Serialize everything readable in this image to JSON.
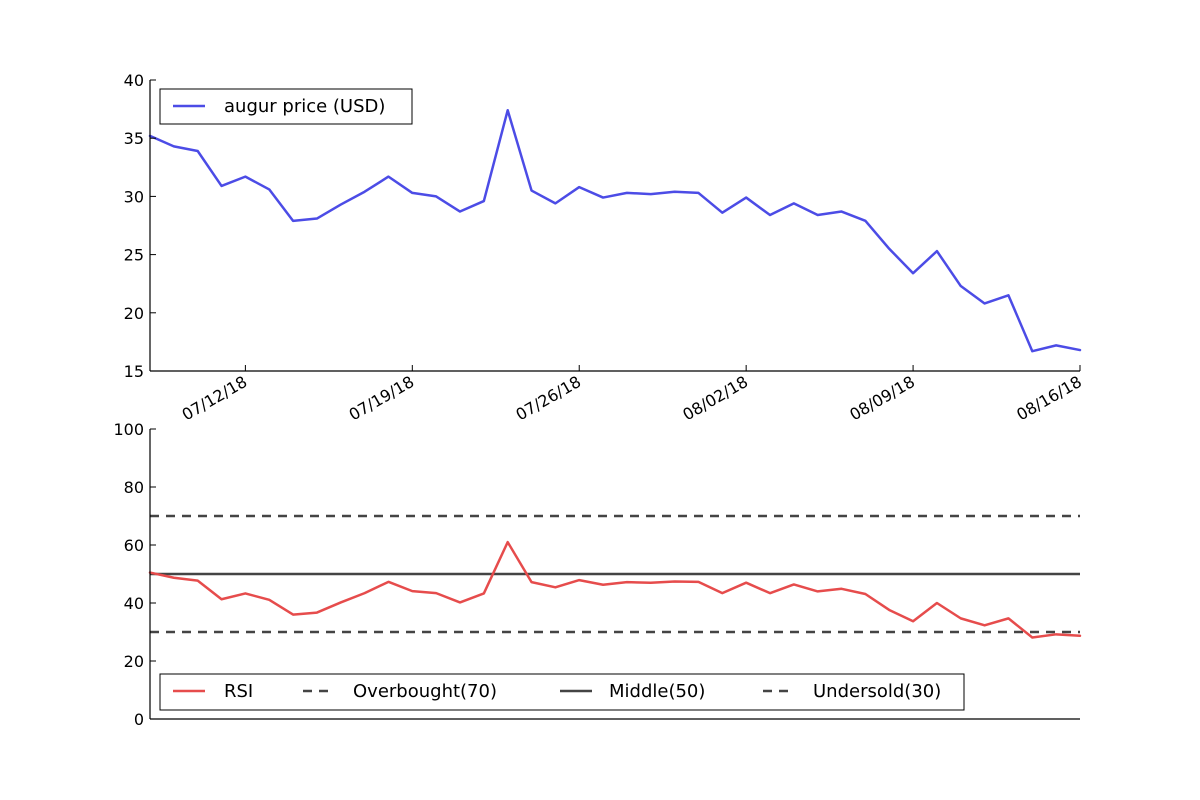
{
  "chart_data": [
    {
      "type": "line",
      "x_dates": [
        "07/08/18",
        "07/09/18",
        "07/10/18",
        "07/11/18",
        "07/12/18",
        "07/13/18",
        "07/14/18",
        "07/15/18",
        "07/16/18",
        "07/17/18",
        "07/18/18",
        "07/19/18",
        "07/20/18",
        "07/21/18",
        "07/22/18",
        "07/23/18",
        "07/24/18",
        "07/25/18",
        "07/26/18",
        "07/27/18",
        "07/28/18",
        "07/29/18",
        "07/30/18",
        "07/31/18",
        "08/01/18",
        "08/02/18",
        "08/03/18",
        "08/04/18",
        "08/05/18",
        "08/06/18",
        "08/07/18",
        "08/08/18",
        "08/09/18",
        "08/10/18",
        "08/11/18",
        "08/12/18",
        "08/13/18",
        "08/14/18",
        "08/15/18",
        "08/16/18"
      ],
      "series": [
        {
          "name": "augur price (USD)",
          "color": "#4c4ce6",
          "values": [
            35.2,
            34.3,
            33.9,
            30.9,
            31.7,
            30.6,
            27.9,
            28.1,
            29.3,
            30.4,
            31.7,
            30.3,
            30.0,
            28.7,
            29.6,
            37.4,
            30.5,
            29.4,
            30.8,
            29.9,
            30.3,
            30.2,
            30.4,
            30.3,
            28.6,
            29.9,
            28.4,
            29.4,
            28.4,
            28.7,
            27.9,
            25.5,
            23.4,
            25.3,
            22.3,
            20.8,
            21.5,
            16.7,
            17.2,
            16.8
          ]
        }
      ],
      "ylim": [
        15,
        40
      ],
      "yticks": [
        15,
        20,
        25,
        30,
        35,
        40
      ],
      "xtick_labels": [
        "07/12/18",
        "07/19/18",
        "07/26/18",
        "08/02/18",
        "08/09/18",
        "08/16/18"
      ],
      "legend_position": "upper left",
      "grid": false
    },
    {
      "type": "line",
      "x_dates": [
        "07/08/18",
        "07/09/18",
        "07/10/18",
        "07/11/18",
        "07/12/18",
        "07/13/18",
        "07/14/18",
        "07/15/18",
        "07/16/18",
        "07/17/18",
        "07/18/18",
        "07/19/18",
        "07/20/18",
        "07/21/18",
        "07/22/18",
        "07/23/18",
        "07/24/18",
        "07/25/18",
        "07/26/18",
        "07/27/18",
        "07/28/18",
        "07/29/18",
        "07/30/18",
        "07/31/18",
        "08/01/18",
        "08/02/18",
        "08/03/18",
        "08/04/18",
        "08/05/18",
        "08/06/18",
        "08/07/18",
        "08/08/18",
        "08/09/18",
        "08/10/18",
        "08/11/18",
        "08/12/18",
        "08/13/18",
        "08/14/18",
        "08/15/18",
        "08/16/18"
      ],
      "series": [
        {
          "name": "RSI",
          "color": "#e64c4c",
          "values": [
            50.5,
            48.7,
            47.7,
            41.3,
            43.3,
            41.1,
            36.0,
            36.7,
            40.2,
            43.4,
            47.3,
            44.1,
            43.4,
            40.2,
            43.3,
            61.0,
            47.2,
            45.4,
            47.9,
            46.3,
            47.2,
            47.0,
            47.4,
            47.3,
            43.4,
            47.0,
            43.4,
            46.4,
            44.0,
            44.9,
            43.1,
            37.6,
            33.7,
            40.0,
            34.7,
            32.3,
            34.7,
            28.1,
            29.2,
            28.7
          ]
        }
      ],
      "reference_lines": [
        {
          "name": "Overbought(70)",
          "value": 70,
          "style": "dashed",
          "color": "#444444"
        },
        {
          "name": "Middle(50)",
          "value": 50,
          "style": "solid",
          "color": "#444444"
        },
        {
          "name": "Undersold(30)",
          "value": 30,
          "style": "dashed",
          "color": "#444444"
        }
      ],
      "ylim": [
        0,
        100
      ],
      "yticks": [
        0,
        20,
        40,
        60,
        80,
        100
      ],
      "legend_position": "lower left",
      "grid": false
    }
  ]
}
